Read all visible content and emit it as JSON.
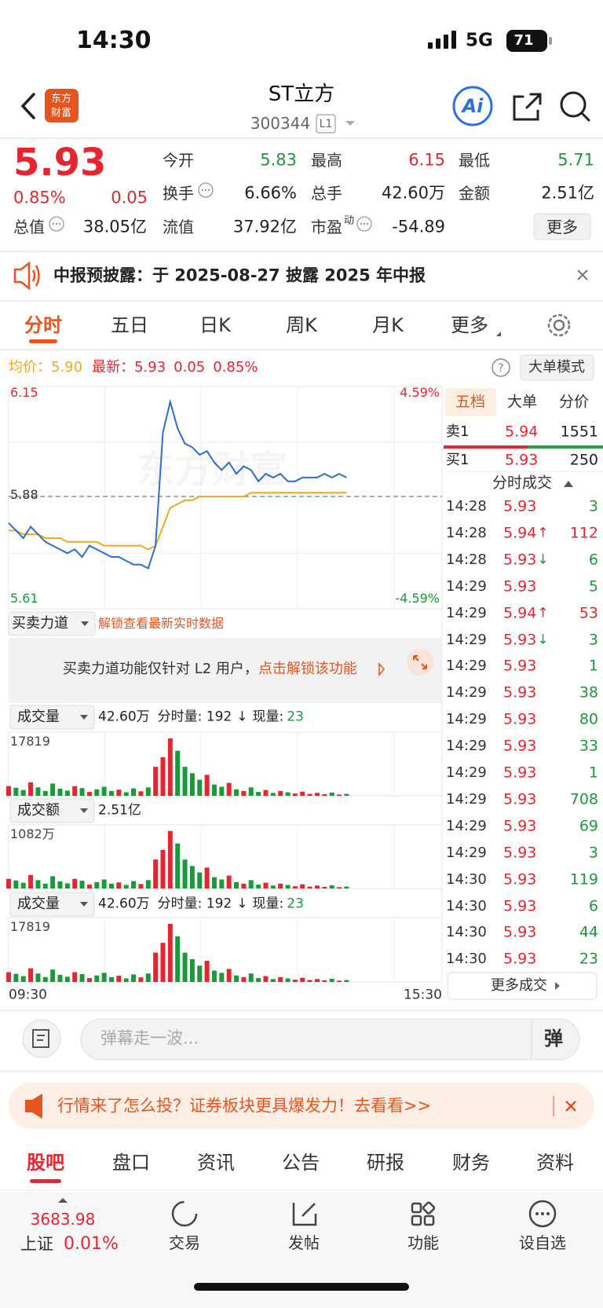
{
  "status": {
    "time": "14:30",
    "network": "5G",
    "battery": "71"
  },
  "header": {
    "logo": [
      "东方",
      "财富"
    ],
    "title": "ST立方",
    "code": "300344",
    "level": "L1",
    "ai": "Ai"
  },
  "quote": {
    "price": "5.93",
    "percent": "0.85%",
    "change": "0.05",
    "more": "更多",
    "fields": [
      {
        "label": "今开",
        "value": "5.83",
        "color": "#1a9a3a"
      },
      {
        "label": "最高",
        "value": "6.15",
        "color": "#e8252f"
      },
      {
        "label": "最低",
        "value": "5.71",
        "color": "#1a9a3a"
      },
      {
        "label": "换手",
        "value": "6.66%",
        "color": "#222222",
        "info": true
      },
      {
        "label": "总手",
        "value": "42.60万",
        "color": "#222222"
      },
      {
        "label": "金额",
        "value": "2.51亿",
        "color": "#222222"
      }
    ],
    "fields_bottom": [
      {
        "label": "总值",
        "value": "38.05亿",
        "color": "#222222",
        "info": true
      },
      {
        "label": "流值",
        "value": "37.92亿",
        "color": "#222222"
      },
      {
        "label": "市盈",
        "sup": "动",
        "value": "-54.89",
        "color": "#222222",
        "info": true
      }
    ]
  },
  "notice": {
    "text": "中报预披露：于 2025-08-27 披露 2025 年中报"
  },
  "tabs": {
    "items": [
      "分时",
      "五日",
      "日K",
      "周K",
      "月K",
      "更多"
    ],
    "active": 0
  },
  "info": {
    "avg_label": "均价：",
    "avg": "5.90",
    "last_label": "最新：",
    "last": "5.93",
    "change": "0.05",
    "percent": "0.85%",
    "help": "?",
    "mode": "大单模式"
  },
  "chart": {
    "ylim": [
      5.61,
      6.15
    ],
    "ref": 5.88,
    "right_labels": [
      "4.59%",
      "-4.59%"
    ],
    "xlabels": [
      "09:30",
      "15:30"
    ],
    "watermark": "东方财富",
    "price_color": "#2a6fd1",
    "avg_color": "#f5a623",
    "price": [
      5.81,
      5.79,
      5.77,
      5.8,
      5.78,
      5.76,
      5.75,
      5.74,
      5.73,
      5.74,
      5.72,
      5.75,
      5.74,
      5.73,
      5.72,
      5.72,
      5.71,
      5.7,
      5.7,
      5.69,
      5.75,
      6.05,
      6.13,
      6.06,
      6.02,
      6.01,
      5.99,
      6.0,
      5.97,
      5.95,
      5.97,
      5.94,
      5.96,
      5.95,
      5.92,
      5.94,
      5.93,
      5.94,
      5.92,
      5.92,
      5.93,
      5.93,
      5.93,
      5.94,
      5.93,
      5.94,
      5.93
    ],
    "avg": [
      5.79,
      5.79,
      5.78,
      5.78,
      5.78,
      5.77,
      5.77,
      5.77,
      5.76,
      5.76,
      5.76,
      5.76,
      5.76,
      5.75,
      5.75,
      5.75,
      5.75,
      5.75,
      5.75,
      5.74,
      5.75,
      5.8,
      5.85,
      5.86,
      5.87,
      5.87,
      5.88,
      5.88,
      5.88,
      5.88,
      5.88,
      5.88,
      5.88,
      5.89,
      5.89,
      5.89,
      5.89,
      5.89,
      5.89,
      5.89,
      5.89,
      5.89,
      5.89,
      5.89,
      5.89,
      5.89,
      5.89
    ]
  },
  "power": {
    "title": "买卖力道",
    "hint": "解锁查看最新实时数据",
    "notice": "买卖力道功能仅针对 L2 用户，",
    "link": "点击解锁该功能"
  },
  "volume": {
    "max": 17819,
    "values": [
      3000,
      2500,
      1800,
      4200,
      2600,
      1500,
      3800,
      2200,
      1600,
      3000,
      2400,
      1200,
      2000,
      2800,
      1500,
      1900,
      1100,
      2300,
      1400,
      2600,
      9000,
      12000,
      17819,
      14000,
      9000,
      7000,
      5000,
      6500,
      3500,
      2800,
      4000,
      2000,
      1500,
      2600,
      1200,
      1800,
      900,
      1500,
      1100,
      700,
      1300,
      600,
      900,
      500,
      1000,
      400,
      600
    ]
  },
  "amount": {
    "max": {
      "value": 1082,
      "label": "1082万"
    },
    "values": [
      182,
      152,
      109,
      255,
      158,
      91,
      231,
      134,
      97,
      182,
      146,
      73,
      121,
      170,
      91,
      115,
      67,
      140,
      85,
      158,
      546,
      728,
      1082,
      850,
      546,
      425,
      304,
      395,
      213,
      170,
      243,
      121,
      91,
      158,
      73,
      109,
      55,
      91,
      67,
      42,
      79,
      36,
      55,
      30,
      61,
      24,
      36
    ]
  },
  "panels": [
    {
      "name": "成交量",
      "total": "42.60万",
      "minute": "分时量: 192",
      "arrow": "↓",
      "now_label": "现量:",
      "now": "23"
    },
    {
      "name": "成交额",
      "total": "2.51亿"
    },
    {
      "name": "成交量",
      "total": "42.60万",
      "minute": "分时量: 192",
      "arrow": "↓",
      "now_label": "现量:",
      "now": "23"
    }
  ],
  "orderbook": {
    "tabs": [
      "五档",
      "大单",
      "分价"
    ],
    "ask": {
      "label": "卖1",
      "price": "5.94",
      "volume": "1551"
    },
    "bid": {
      "label": "买1",
      "price": "5.93",
      "volume": "250"
    },
    "trades_title": "分时成交",
    "trades": [
      {
        "time": "14:28",
        "price": "5.93",
        "volume": "3",
        "color": "#1a9a3a"
      },
      {
        "time": "14:28",
        "price": "5.94",
        "arrow": "↑",
        "volume": "112",
        "color": "#e8252f"
      },
      {
        "time": "14:28",
        "price": "5.93",
        "arrow": "↓",
        "volume": "6",
        "color": "#1a9a3a"
      },
      {
        "time": "14:29",
        "price": "5.93",
        "volume": "5",
        "color": "#1a9a3a"
      },
      {
        "time": "14:29",
        "price": "5.94",
        "arrow": "↑",
        "volume": "53",
        "color": "#e8252f"
      },
      {
        "time": "14:29",
        "price": "5.93",
        "arrow": "↓",
        "volume": "3",
        "color": "#1a9a3a"
      },
      {
        "time": "14:29",
        "price": "5.93",
        "volume": "1",
        "color": "#1a9a3a"
      },
      {
        "time": "14:29",
        "price": "5.93",
        "volume": "38",
        "color": "#1a9a3a"
      },
      {
        "time": "14:29",
        "price": "5.93",
        "volume": "80",
        "color": "#1a9a3a"
      },
      {
        "time": "14:29",
        "price": "5.93",
        "volume": "33",
        "color": "#1a9a3a"
      },
      {
        "time": "14:29",
        "price": "5.93",
        "volume": "1",
        "color": "#1a9a3a"
      },
      {
        "time": "14:29",
        "price": "5.93",
        "volume": "708",
        "color": "#1a9a3a"
      },
      {
        "time": "14:29",
        "price": "5.93",
        "volume": "69",
        "color": "#1a9a3a"
      },
      {
        "time": "14:29",
        "price": "5.93",
        "volume": "3",
        "color": "#1a9a3a"
      },
      {
        "time": "14:30",
        "price": "5.93",
        "volume": "119",
        "color": "#1a9a3a"
      },
      {
        "time": "14:30",
        "price": "5.93",
        "volume": "6",
        "color": "#1a9a3a"
      },
      {
        "time": "14:30",
        "price": "5.93",
        "volume": "44",
        "color": "#1a9a3a"
      },
      {
        "time": "14:30",
        "price": "5.93",
        "volume": "23",
        "color": "#1a9a3a"
      }
    ],
    "more": "更多成交"
  },
  "comment": {
    "placeholder": "弹幕走一波...",
    "button": "弹"
  },
  "ad": {
    "text": "行情来了怎么投？证券板块更具爆发力！去看看>>"
  },
  "bottom_tabs": {
    "items": [
      "股吧",
      "盘口",
      "资讯",
      "公告",
      "研报",
      "财务",
      "资料"
    ],
    "active": 0
  },
  "nav": {
    "index": "3683.98",
    "market": "上证",
    "percent": "0.01%",
    "items": [
      "交易",
      "发帖",
      "功能",
      "设自选"
    ]
  }
}
